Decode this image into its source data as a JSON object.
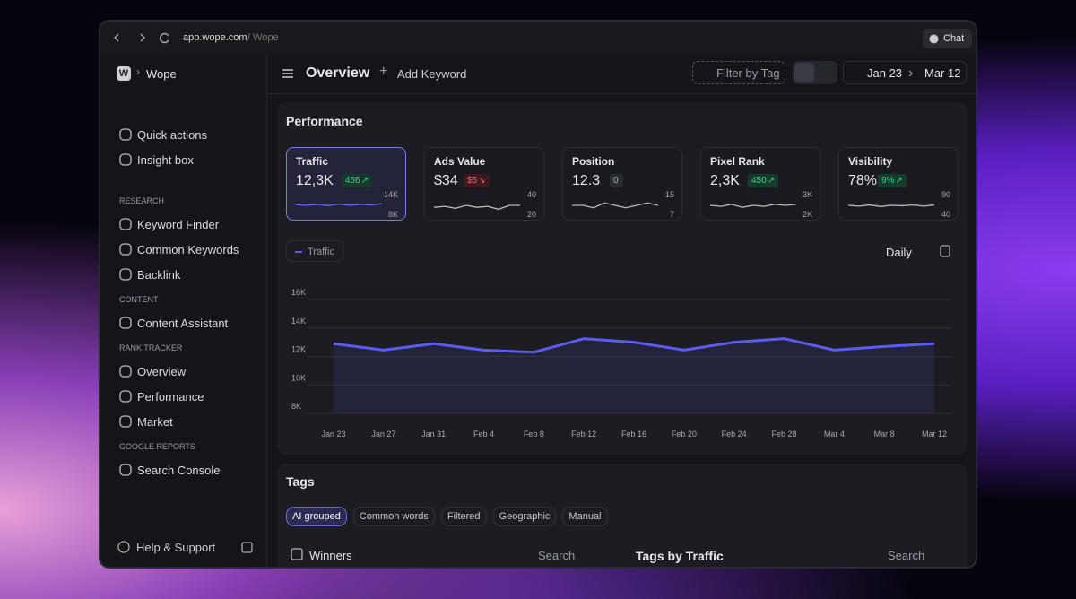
{
  "browser": {
    "url": "app.wope.com",
    "path": "/ Wope",
    "chat": "Chat"
  },
  "sidebar": {
    "avatar": "W",
    "workspace": "Wope",
    "top": [
      "Quick actions",
      "Insight box"
    ],
    "sections": [
      {
        "title": "RESEARCH",
        "items": [
          "Keyword Finder",
          "Common Keywords",
          "Backlink"
        ]
      },
      {
        "title": "CONTENT",
        "items": [
          "Content Assistant"
        ]
      },
      {
        "title": "RANK TRACKER",
        "items": [
          "Overview",
          "Performance",
          "Market"
        ]
      },
      {
        "title": "GOOGLE REPORTS",
        "items": [
          "Search Console"
        ]
      }
    ],
    "footer": "Help & Support"
  },
  "header": {
    "title": "Overview",
    "add": "Add Keyword",
    "filter": "Filter by Tag",
    "date_from": "Jan 23",
    "date_to": "Mar 12"
  },
  "performance": {
    "title": "Performance",
    "period": "Daily",
    "cards": [
      {
        "name": "Traffic",
        "value": "12,3K",
        "change": "456",
        "trend": "up",
        "spark": {
          "ylim": [
            8000,
            14000
          ],
          "yticks": [
            {
              "value": 14000,
              "label": "14K"
            },
            {
              "value": 8000,
              "label": "8K"
            }
          ],
          "values": [
            11200,
            11000,
            11300,
            10900,
            11400,
            11000,
            11300,
            11100,
            11500
          ]
        }
      },
      {
        "name": "Ads Value",
        "value": "$34",
        "change": "$5",
        "trend": "down",
        "spark": {
          "ylim": [
            20,
            40
          ],
          "yticks": [
            40,
            20
          ],
          "values": [
            28,
            29,
            27,
            30,
            28,
            29,
            26,
            30,
            30
          ]
        }
      },
      {
        "name": "Position",
        "value": "12.3",
        "change": "0",
        "trend": "flat",
        "spark": {
          "ylim": [
            7,
            15
          ],
          "yticks": [
            15,
            7
          ],
          "values": [
            11,
            11,
            10,
            12,
            11,
            10,
            11,
            12,
            11
          ]
        }
      },
      {
        "name": "Pixel Rank",
        "value": "2,3K",
        "change": "450",
        "trend": "up",
        "spark": {
          "ylim": [
            2000,
            3000
          ],
          "yticks": [
            {
              "value": 3000,
              "label": "3K"
            },
            {
              "value": 2000,
              "label": "2K"
            }
          ],
          "values": [
            2500,
            2450,
            2550,
            2400,
            2500,
            2450,
            2550,
            2500,
            2550
          ]
        }
      },
      {
        "name": "Visibility",
        "value": "78%",
        "change": "9%",
        "trend": "up",
        "spark": {
          "ylim": [
            40,
            90
          ],
          "yticks": [
            90,
            40
          ],
          "values": [
            65,
            63,
            66,
            62,
            65,
            64,
            66,
            63,
            66
          ]
        }
      }
    ]
  },
  "chart_data": {
    "type": "area",
    "categories": [
      "Jan 23",
      "Jan 27",
      "Jan 31",
      "Feb 4",
      "Feb 8",
      "Feb 12",
      "Feb 16",
      "Feb 20",
      "Feb 24",
      "Feb 28",
      "Mar 4",
      "Mar 8",
      "Mar 12"
    ],
    "series": [
      {
        "name": "Traffic",
        "color": "#5b5bf0",
        "values": [
          12900,
          12450,
          12900,
          12450,
          12300,
          13250,
          13000,
          12450,
          13000,
          13250,
          12450,
          12700,
          12900
        ]
      }
    ],
    "ylim": [
      8000,
      16000
    ],
    "yticks": [
      {
        "value": 8000,
        "label": "8K"
      },
      {
        "value": 10000,
        "label": "10K"
      },
      {
        "value": 12000,
        "label": "12K"
      },
      {
        "value": 14000,
        "label": "14K"
      },
      {
        "value": 16000,
        "label": "16K"
      }
    ],
    "grid": true
  },
  "tags": {
    "title": "Tags",
    "chips": [
      "AI grouped",
      "Common words",
      "Filtered",
      "Geographic",
      "Manual"
    ],
    "active": 0,
    "winners": "Winners",
    "search": "Search",
    "by_traffic": "Tags by Traffic",
    "search2": "Search"
  }
}
